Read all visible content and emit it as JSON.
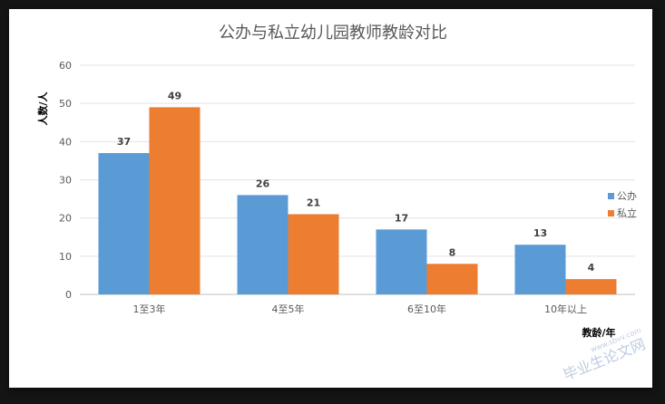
{
  "chart_data": {
    "type": "bar",
    "title": "公办与私立幼儿园教师教龄对比",
    "xlabel": "教龄/年",
    "ylabel": "人数/人",
    "categories": [
      "1至3年",
      "4至5年",
      "6至10年",
      "10年以上"
    ],
    "series": [
      {
        "name": "公办",
        "values": [
          37,
          26,
          17,
          13
        ],
        "color": "#5b9bd5"
      },
      {
        "name": "私立",
        "values": [
          49,
          21,
          8,
          4
        ],
        "color": "#ed7d31"
      }
    ],
    "ylim": [
      0,
      60
    ],
    "yticks": [
      0,
      10,
      20,
      30,
      40,
      50,
      60
    ],
    "grid": true,
    "legend_position": "right"
  },
  "watermark": {
    "text": "毕业生论文网",
    "url": "www.sbvv.com"
  }
}
